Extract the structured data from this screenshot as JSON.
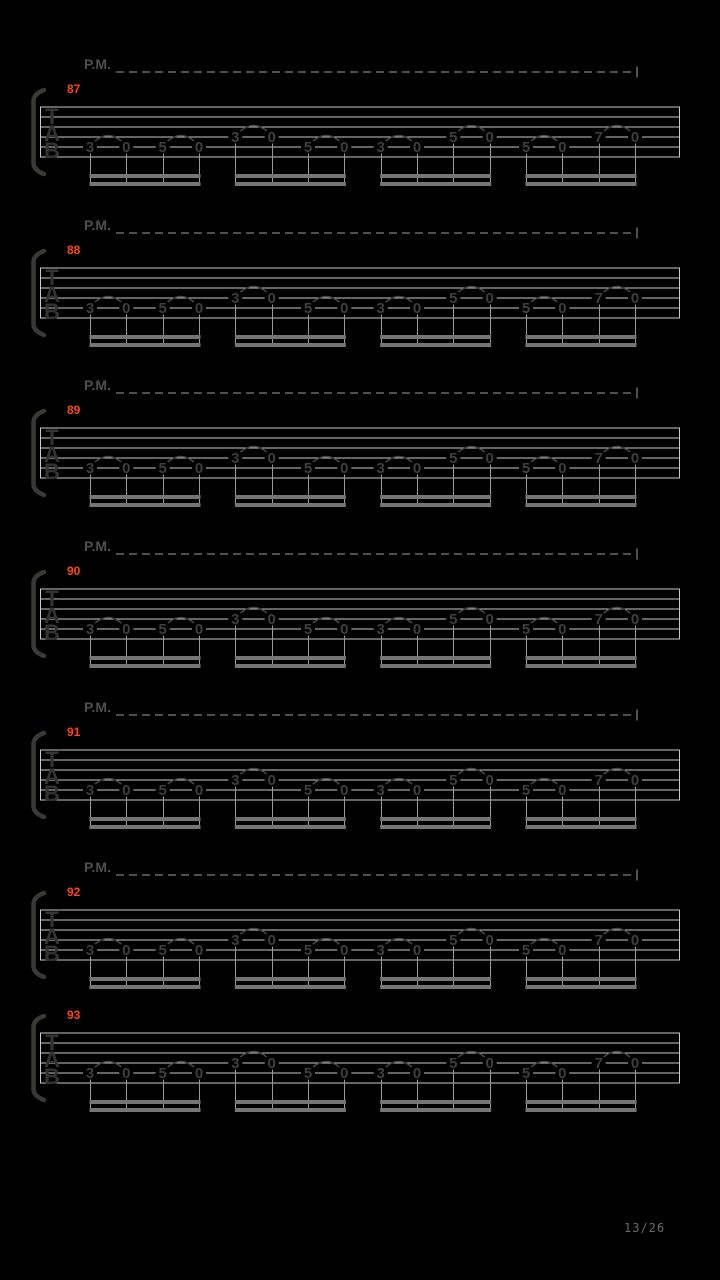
{
  "page": {
    "background": "#000000",
    "page_indicator": "13/26"
  },
  "colors": {
    "staff_line": "#c9c9c9",
    "fret_number": "#3e3e3e",
    "tab_clef": "#333333",
    "slur": "#464646",
    "stem": "#9a9a9a",
    "beam": "#757575",
    "palm_mute": "#4f4f4f",
    "measure_number": "#ff4613",
    "bracket": "#3a3a35",
    "page_indicator": "#6a6a6a"
  },
  "palm_mute_label": "P.M.",
  "tab_clef_letters": [
    "T",
    "A",
    "B"
  ],
  "systems": [
    {
      "measure": "87",
      "palm_mute": true
    },
    {
      "measure": "88",
      "palm_mute": true
    },
    {
      "measure": "89",
      "palm_mute": true
    },
    {
      "measure": "90",
      "palm_mute": true
    },
    {
      "measure": "91",
      "palm_mute": true
    },
    {
      "measure": "92",
      "palm_mute": true
    },
    {
      "measure": "93",
      "palm_mute": false
    }
  ],
  "measure_pattern": {
    "time_slots": 16,
    "notes": [
      {
        "fret": "3",
        "string": 5
      },
      {
        "fret": "0",
        "string": 5
      },
      {
        "fret": "5",
        "string": 5
      },
      {
        "fret": "0",
        "string": 5
      },
      {
        "fret": "3",
        "string": 4
      },
      {
        "fret": "0",
        "string": 4
      },
      {
        "fret": "5",
        "string": 5
      },
      {
        "fret": "0",
        "string": 5
      },
      {
        "fret": "3",
        "string": 5
      },
      {
        "fret": "0",
        "string": 5
      },
      {
        "fret": "5",
        "string": 4
      },
      {
        "fret": "0",
        "string": 4
      },
      {
        "fret": "5",
        "string": 5
      },
      {
        "fret": "0",
        "string": 5
      },
      {
        "fret": "7",
        "string": 4
      },
      {
        "fret": "0",
        "string": 4
      }
    ],
    "slurs": [
      [
        0,
        1
      ],
      [
        2,
        3
      ],
      [
        4,
        5
      ],
      [
        6,
        7
      ],
      [
        8,
        9
      ],
      [
        10,
        11
      ],
      [
        12,
        13
      ],
      [
        14,
        15
      ]
    ],
    "beam_groups": [
      [
        0,
        3
      ],
      [
        4,
        7
      ],
      [
        8,
        11
      ],
      [
        12,
        15
      ]
    ]
  }
}
